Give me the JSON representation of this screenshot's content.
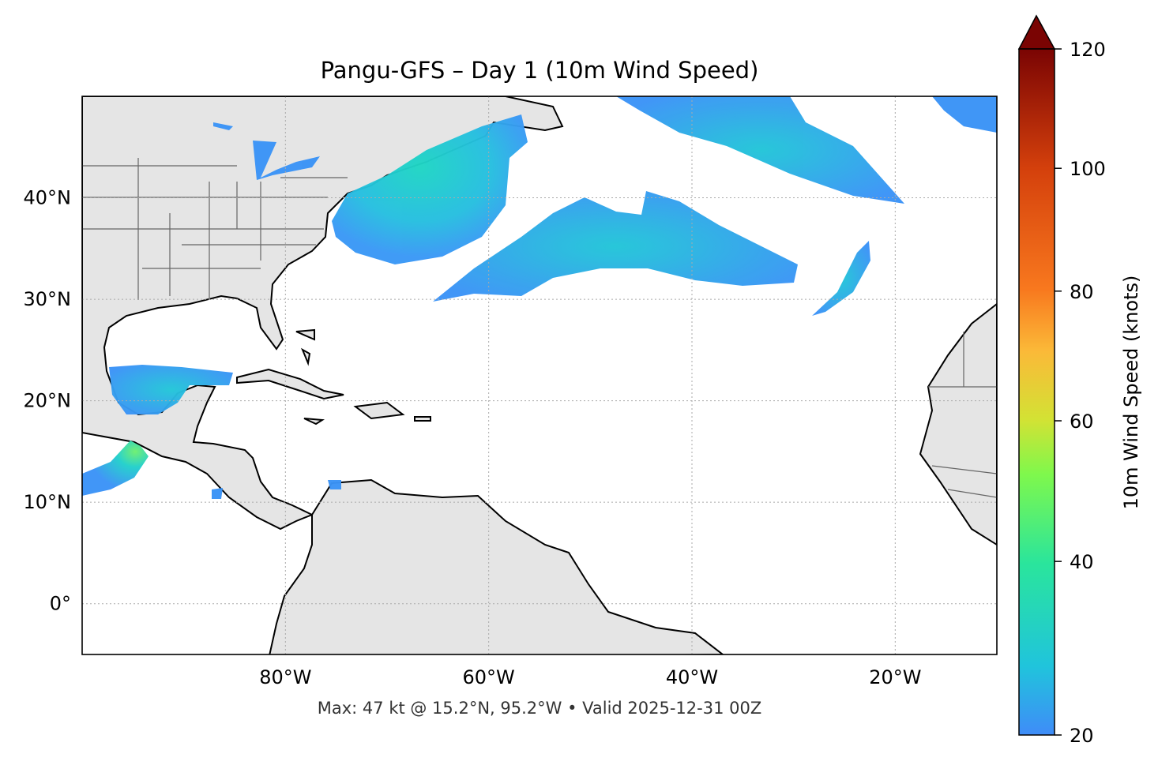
{
  "title": "Pangu-GFS – Day 1 (10m Wind Speed)",
  "subtitle": "Max: 47 kt @ 15.2°N, 95.2°W • Valid 2025-12-31 00Z",
  "map": {
    "extent_lon": [
      -100,
      -10
    ],
    "extent_lat": [
      -5,
      50
    ],
    "land_color": "#e5e5e5",
    "ocean_color": "#ffffff",
    "gridlines": "dotted",
    "lon_ticks": [
      {
        "value": -80,
        "label": "80°W"
      },
      {
        "value": -60,
        "label": "60°W"
      },
      {
        "value": -40,
        "label": "40°W"
      },
      {
        "value": -20,
        "label": "20°W"
      }
    ],
    "lat_ticks": [
      {
        "value": 40,
        "label": "40°N"
      },
      {
        "value": 30,
        "label": "30°N"
      },
      {
        "value": 20,
        "label": "20°N"
      },
      {
        "value": 10,
        "label": "10°N"
      },
      {
        "value": 0,
        "label": "0°"
      }
    ]
  },
  "colorbar": {
    "label": "10m Wind Speed (knots)",
    "range": [
      20,
      120
    ],
    "extend": "max",
    "colormap": "turbo",
    "ticks": [
      {
        "value": 120,
        "label": "120"
      },
      {
        "value": 100,
        "label": "100"
      },
      {
        "value": 80,
        "label": "80"
      },
      {
        "value": 60,
        "label": "60"
      },
      {
        "value": 40,
        "label": "40"
      },
      {
        "value": 20,
        "label": "20"
      }
    ]
  }
}
